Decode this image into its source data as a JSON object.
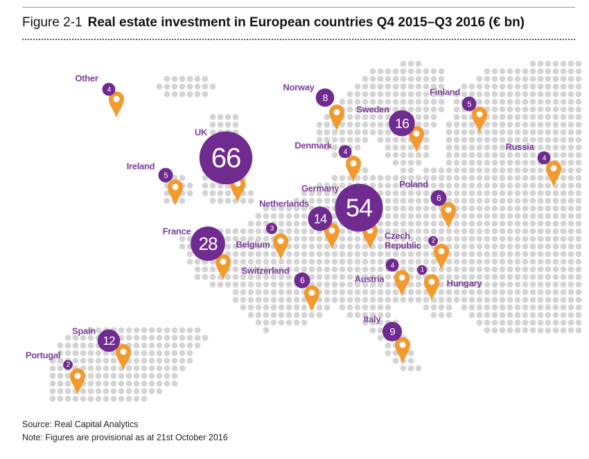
{
  "figure": {
    "label": "Figure 2-1",
    "title": "Real estate investment in European countries Q4 2015–Q3 2016 (€ bn)"
  },
  "countries": [
    {
      "name": "Other",
      "value": 4
    },
    {
      "name": "Norway",
      "value": 8
    },
    {
      "name": "Sweden",
      "value": 16
    },
    {
      "name": "Finland",
      "value": 5
    },
    {
      "name": "UK",
      "value": 66
    },
    {
      "name": "Denmark",
      "value": 4
    },
    {
      "name": "Russia",
      "value": 4
    },
    {
      "name": "Ireland",
      "value": 5
    },
    {
      "name": "Germany",
      "value": 54
    },
    {
      "name": "Poland",
      "value": 6
    },
    {
      "name": "Netherlands",
      "value": 14
    },
    {
      "name": "France",
      "value": 28
    },
    {
      "name": "Belgium",
      "value": 3
    },
    {
      "name": "Czech Republic",
      "value": 2
    },
    {
      "name": "Switzerland",
      "value": 6
    },
    {
      "name": "Austria",
      "value": 4
    },
    {
      "name": "Hungary",
      "value": 1
    },
    {
      "name": "Italy",
      "value": 9
    },
    {
      "name": "Spain",
      "value": 12
    },
    {
      "name": "Portugal",
      "value": 2
    }
  ],
  "source": "Source: Real Capital Analytics",
  "note": "Note: Figures are provisional as at 21st October 2016"
}
